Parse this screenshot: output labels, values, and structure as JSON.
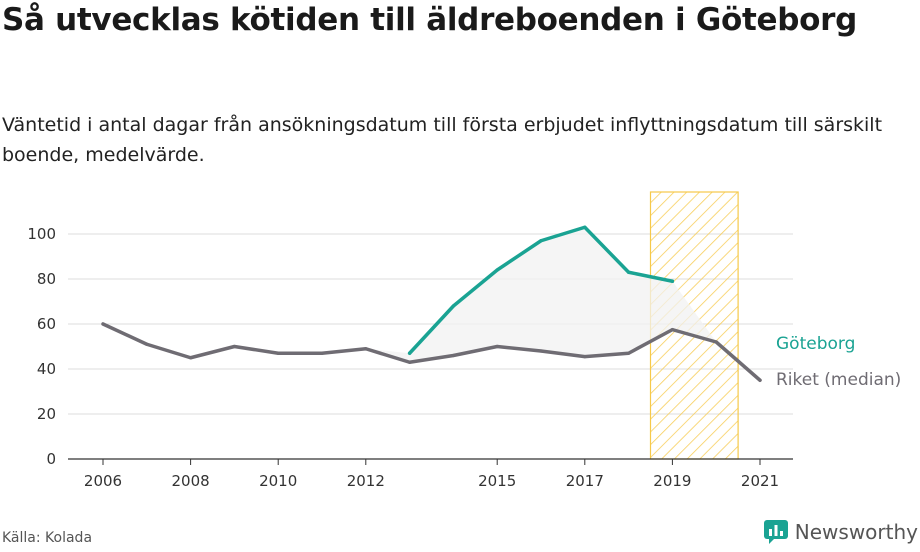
{
  "header": {
    "title": "Så utvecklas kötiden till äldreboenden i Göteborg",
    "subtitle": "Väntetid i antal dagar från ansökningsdatum till första erbjudet inflyttningsdatum till särskilt boende, medelvärde."
  },
  "footer": {
    "source": "Källa: Kolada",
    "brand": "Newsworthy"
  },
  "colors": {
    "goteborg": "#1aa393",
    "riket": "#6f6c73",
    "highlight": "#f6c94a",
    "grid": "#dddddd",
    "area": "#f2f2f2",
    "brand": "#1aa393"
  },
  "chart_data": {
    "type": "line",
    "x_ticks": [
      "2006",
      "2008",
      "2010",
      "2012",
      "2015",
      "2017",
      "2019",
      "2021"
    ],
    "y_ticks": [
      "0",
      "20",
      "40",
      "60",
      "80",
      "100"
    ],
    "xlim": [
      2006,
      2021
    ],
    "ylim": [
      0,
      100
    ],
    "grid": true,
    "highlight_span": [
      2018.5,
      2020.5
    ],
    "series": [
      {
        "name": "Göteborg",
        "x": [
          2013,
          2014,
          2015,
          2016,
          2017,
          2018,
          2019
        ],
        "values": [
          47,
          68,
          84,
          97,
          103,
          83,
          79
        ]
      },
      {
        "name": "Riket (median)",
        "x": [
          2006,
          2007,
          2008,
          2009,
          2010,
          2011,
          2012,
          2013,
          2014,
          2015,
          2016,
          2017,
          2018,
          2019,
          2020,
          2021
        ],
        "values": [
          60,
          51,
          45,
          50,
          47,
          47,
          49,
          43,
          46,
          50,
          48,
          45.5,
          47,
          57.5,
          52,
          35
        ]
      }
    ]
  }
}
